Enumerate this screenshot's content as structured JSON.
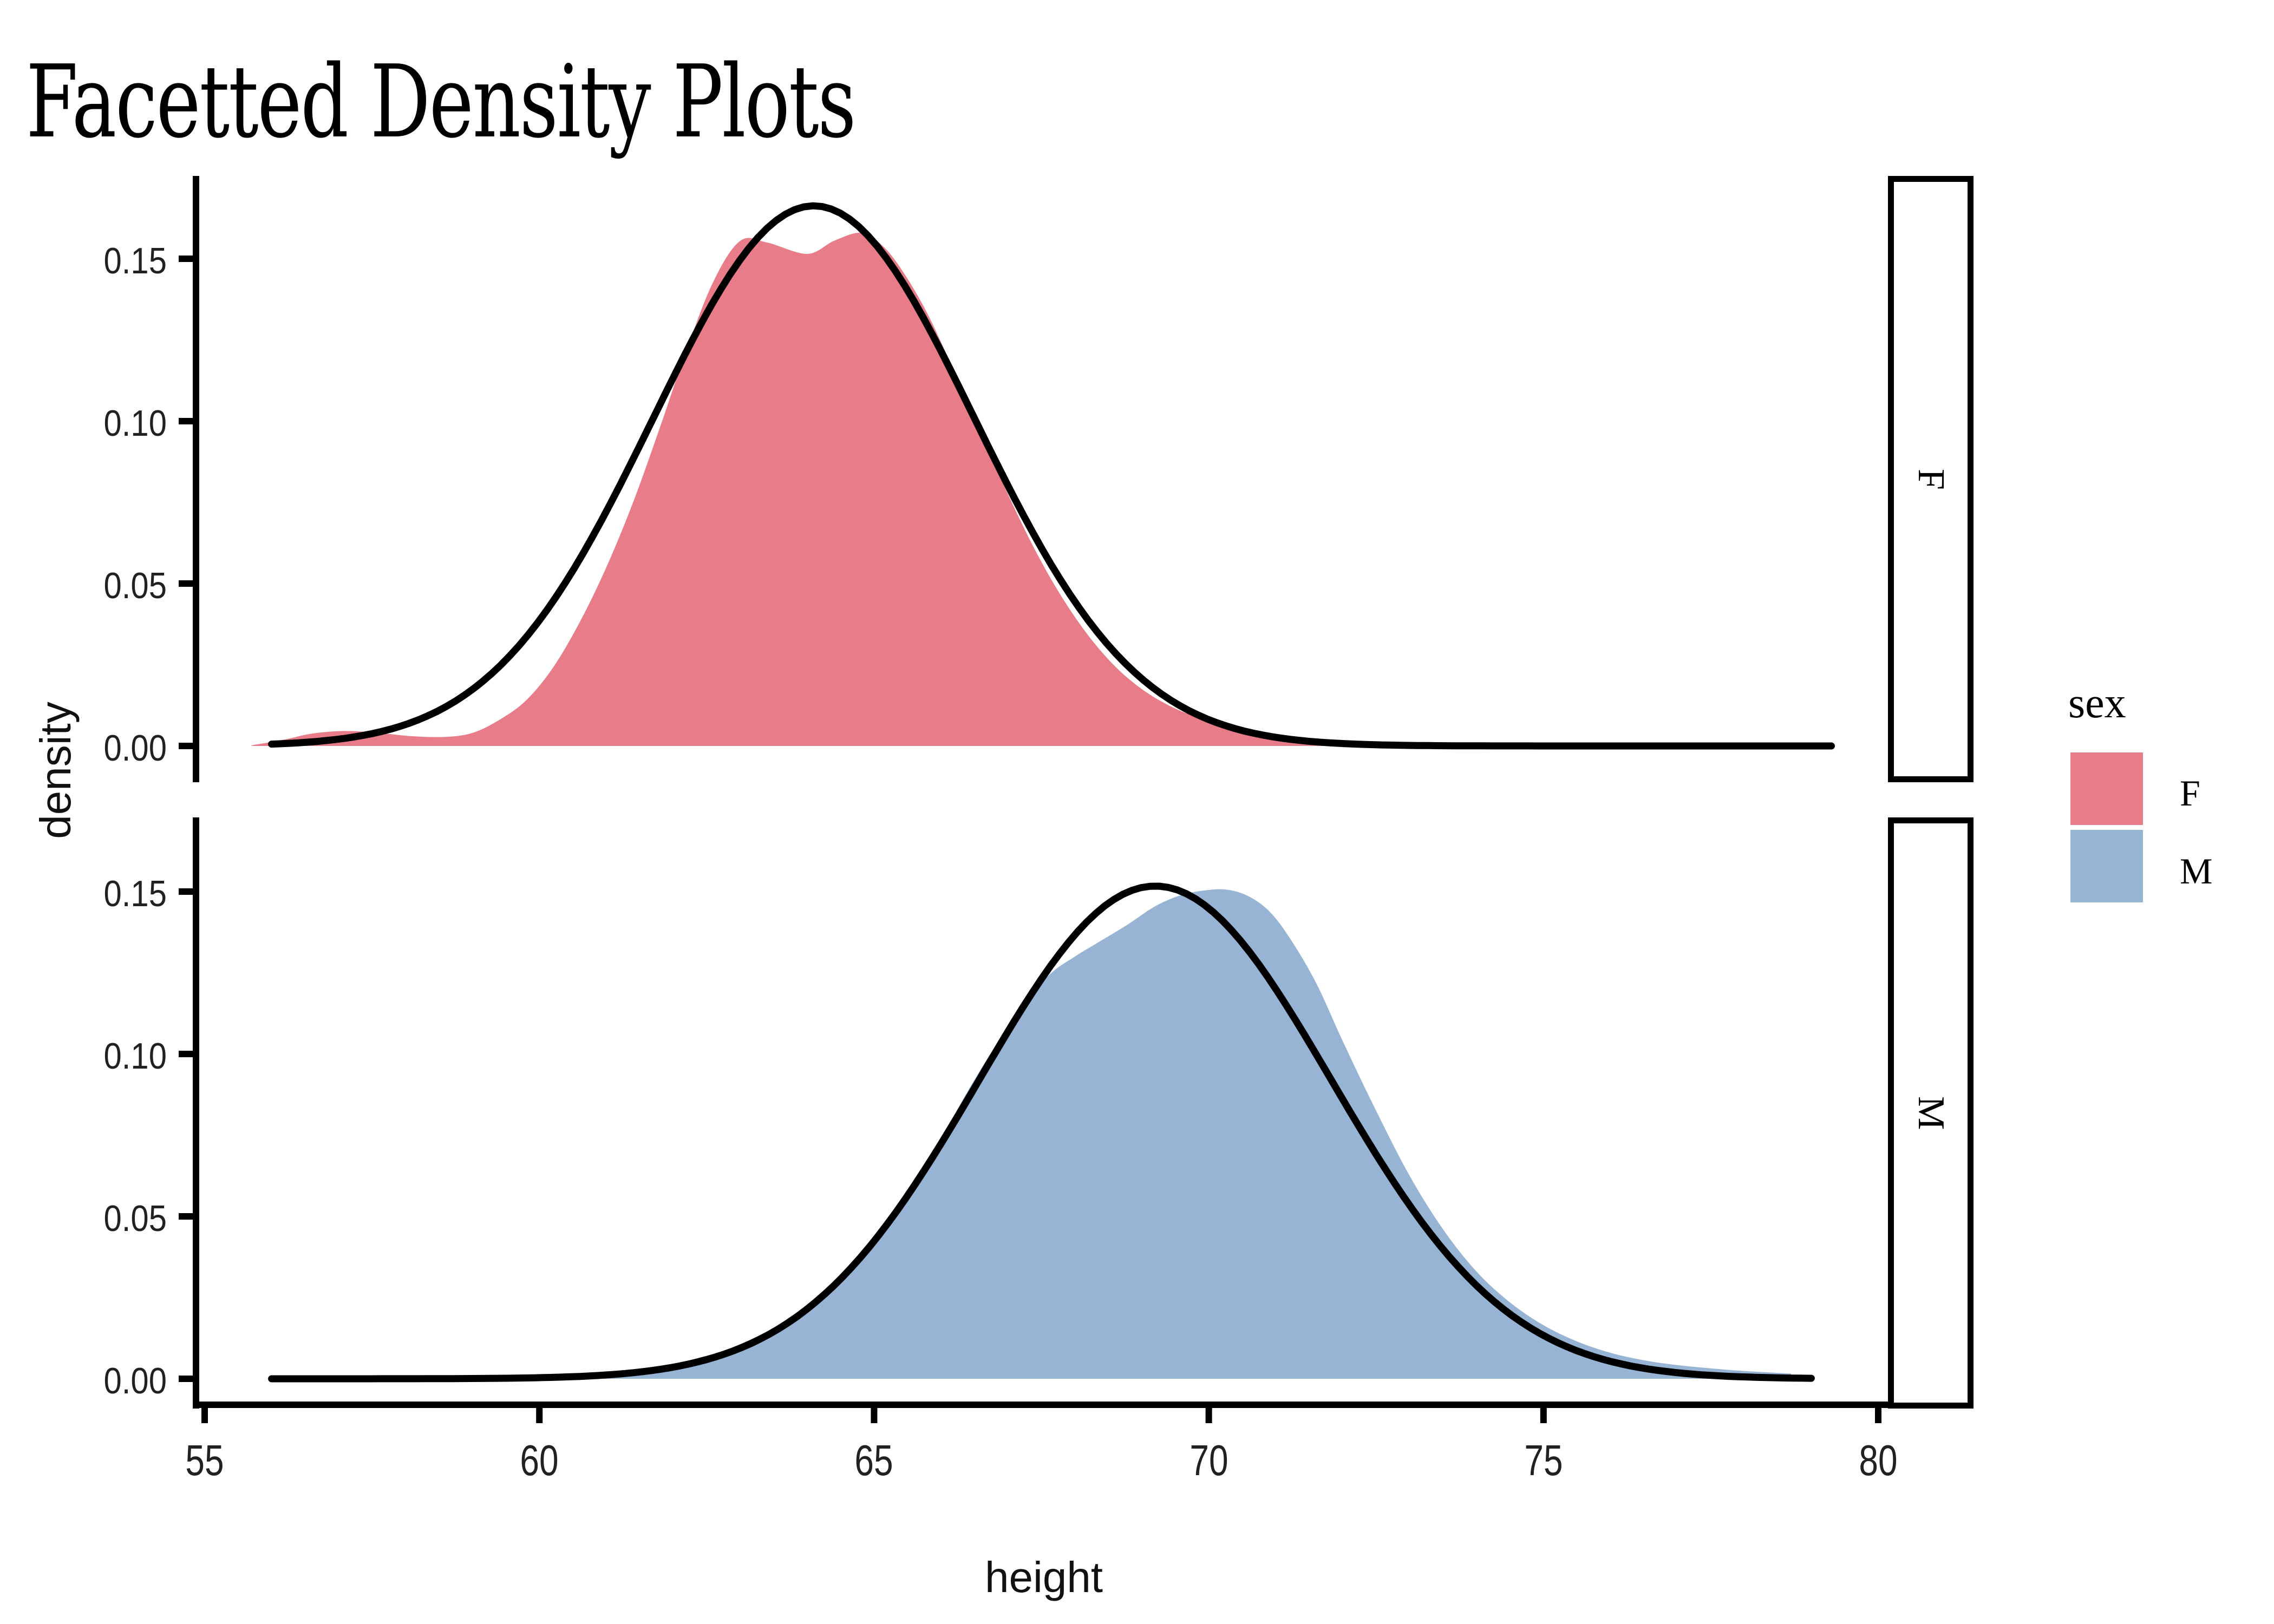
{
  "title": "Facetted Density Plots",
  "x_axis_label": "height",
  "y_axis_label": "density",
  "facet_strips": [
    "F",
    "M"
  ],
  "legend": {
    "title": "sex",
    "items": [
      {
        "label": "F",
        "color": "#E87C89"
      },
      {
        "label": "M",
        "color": "#98B4D5"
      }
    ]
  },
  "chart_data": {
    "type": "area",
    "subtype": "facetted-density-with-normal-overlay",
    "title": "Facetted Density Plots",
    "xlabel": "height",
    "ylabel": "density",
    "xlim": [
      54.9,
      80.2
    ],
    "ylim": [
      0,
      0.175
    ],
    "x_ticks": [
      55,
      60,
      65,
      70,
      75,
      80
    ],
    "y_ticks": [
      0.0,
      0.05,
      0.1,
      0.15
    ],
    "grid": "off",
    "legend_position": "right",
    "legend_title": "sex",
    "line_color": "#000000",
    "facets": [
      {
        "name": "F",
        "fill_color": "#E87C89",
        "density_points": [
          [
            55.7,
            0.0002
          ],
          [
            56.2,
            0.002
          ],
          [
            56.6,
            0.0038
          ],
          [
            57.1,
            0.0046
          ],
          [
            57.6,
            0.004
          ],
          [
            58.1,
            0.003
          ],
          [
            58.6,
            0.0028
          ],
          [
            59.0,
            0.004
          ],
          [
            59.4,
            0.008
          ],
          [
            59.8,
            0.014
          ],
          [
            60.2,
            0.024
          ],
          [
            60.6,
            0.038
          ],
          [
            61.0,
            0.055
          ],
          [
            61.4,
            0.075
          ],
          [
            61.8,
            0.098
          ],
          [
            62.2,
            0.122
          ],
          [
            62.6,
            0.143
          ],
          [
            63.0,
            0.1555
          ],
          [
            63.4,
            0.155
          ],
          [
            64.0,
            0.1515
          ],
          [
            64.4,
            0.1555
          ],
          [
            64.8,
            0.158
          ],
          [
            65.1,
            0.1545
          ],
          [
            65.4,
            0.147
          ],
          [
            65.8,
            0.133
          ],
          [
            66.2,
            0.115
          ],
          [
            66.6,
            0.096
          ],
          [
            67.0,
            0.0775
          ],
          [
            67.4,
            0.0605
          ],
          [
            67.8,
            0.046
          ],
          [
            68.2,
            0.034
          ],
          [
            68.6,
            0.0245
          ],
          [
            69.0,
            0.0175
          ],
          [
            69.4,
            0.0125
          ],
          [
            69.8,
            0.009
          ],
          [
            70.2,
            0.0065
          ],
          [
            70.6,
            0.0048
          ],
          [
            71.0,
            0.0035
          ],
          [
            71.5,
            0.0022
          ],
          [
            72.0,
            0.0013
          ],
          [
            72.5,
            0.0007
          ],
          [
            73.0,
            0.0003
          ],
          [
            73.6,
            0.0001
          ],
          [
            74.4,
            0.0
          ]
        ],
        "normal_overlay": {
          "mean": 64.1,
          "sd": 2.4,
          "peak_density": 0.1663,
          "x_start": 56.0,
          "x_end": 79.3
        }
      },
      {
        "name": "M",
        "fill_color": "#98B4D5",
        "density_points": [
          [
            60.8,
            0.0002
          ],
          [
            61.3,
            0.0015
          ],
          [
            61.8,
            0.0035
          ],
          [
            62.3,
            0.006
          ],
          [
            62.8,
            0.009
          ],
          [
            63.3,
            0.0135
          ],
          [
            63.8,
            0.019
          ],
          [
            64.3,
            0.027
          ],
          [
            64.8,
            0.037
          ],
          [
            65.3,
            0.05
          ],
          [
            65.8,
            0.066
          ],
          [
            66.3,
            0.085
          ],
          [
            66.8,
            0.102
          ],
          [
            67.2,
            0.113
          ],
          [
            67.6,
            0.124
          ],
          [
            68.0,
            0.13
          ],
          [
            68.4,
            0.135
          ],
          [
            68.8,
            0.14
          ],
          [
            69.2,
            0.1455
          ],
          [
            69.6,
            0.149
          ],
          [
            70.0,
            0.1505
          ],
          [
            70.3,
            0.1505
          ],
          [
            70.6,
            0.1485
          ],
          [
            70.9,
            0.144
          ],
          [
            71.2,
            0.136
          ],
          [
            71.6,
            0.122
          ],
          [
            72.0,
            0.104
          ],
          [
            72.5,
            0.0825
          ],
          [
            73.0,
            0.0625
          ],
          [
            73.5,
            0.046
          ],
          [
            74.0,
            0.033
          ],
          [
            74.5,
            0.0235
          ],
          [
            75.0,
            0.0165
          ],
          [
            75.5,
            0.0115
          ],
          [
            76.0,
            0.008
          ],
          [
            76.5,
            0.0057
          ],
          [
            77.0,
            0.0042
          ],
          [
            77.5,
            0.0032
          ],
          [
            78.0,
            0.0024
          ],
          [
            78.7,
            0.0016
          ]
        ],
        "normal_overlay": {
          "mean": 69.2,
          "sd": 2.63,
          "peak_density": 0.1517,
          "x_start": 56.0,
          "x_end": 79.0
        }
      }
    ]
  }
}
